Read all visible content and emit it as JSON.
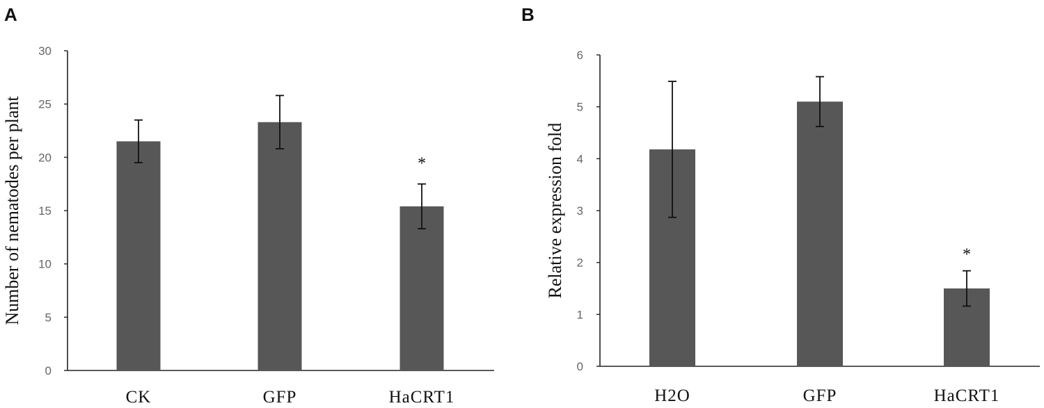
{
  "chart_data": [
    {
      "panel": "A",
      "type": "bar",
      "categories": [
        "CK",
        "GFP",
        "HaCRT1"
      ],
      "values": [
        21.5,
        23.3,
        15.4
      ],
      "errors": [
        2.0,
        2.5,
        2.1
      ],
      "significance": [
        "",
        "",
        "*"
      ],
      "ylabel": "Number of nematodes per plant",
      "xlabel": "",
      "ylim": [
        0,
        30
      ],
      "yticks": [
        0,
        5,
        10,
        15,
        20,
        25,
        30
      ],
      "grid": false,
      "bar_color": "#575757"
    },
    {
      "panel": "B",
      "type": "bar",
      "categories": [
        "H2O",
        "GFP",
        "HaCRT1"
      ],
      "values": [
        4.18,
        5.1,
        1.5
      ],
      "errors": [
        1.31,
        0.48,
        0.34
      ],
      "significance": [
        "",
        "",
        "*"
      ],
      "ylabel": "Relative expression fold",
      "xlabel": "",
      "ylim": [
        0,
        6
      ],
      "yticks": [
        0,
        1,
        2,
        3,
        4,
        5,
        6
      ],
      "grid": false,
      "bar_color": "#575757"
    }
  ]
}
